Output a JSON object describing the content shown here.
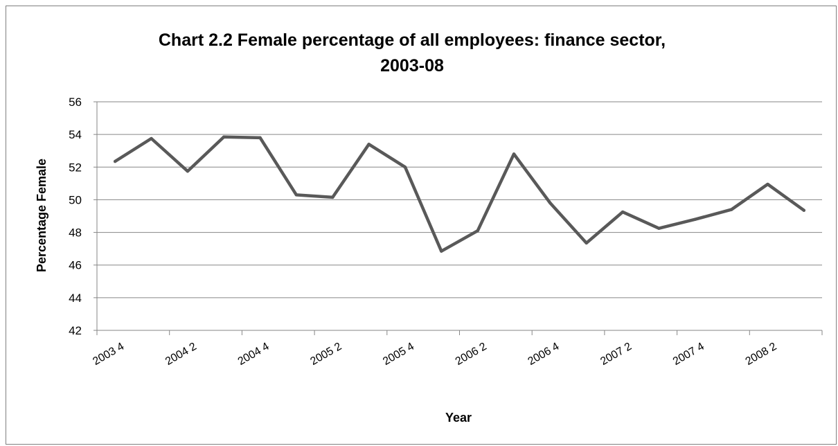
{
  "chart_data": {
    "type": "line",
    "title": "Chart 2.2 Female percentage of all employees: finance sector, 2003-08",
    "title_lines": [
      "Chart 2.2 Female percentage of all employees: finance sector,",
      "2003-08"
    ],
    "xlabel": "Year",
    "ylabel": "Percentage Female",
    "ylim": [
      42,
      56
    ],
    "yticks": [
      "42",
      "44",
      "46",
      "48",
      "50",
      "52",
      "54",
      "56"
    ],
    "grid": "horizontal",
    "legend": "none",
    "x": [
      "2003 4",
      "2004 1",
      "2004 2",
      "2004 3",
      "2004 4",
      "2005 1",
      "2005 2",
      "2005 3",
      "2005 4",
      "2006 1",
      "2006 2",
      "2006 3",
      "2006 4",
      "2007 1",
      "2007 2",
      "2007 3",
      "2007 4",
      "2008 1",
      "2008 2",
      "2008 3"
    ],
    "xtick_labels": [
      "2003 4",
      "2004 2",
      "2004 4",
      "2005 2",
      "2005 4",
      "2006 2",
      "2006 4",
      "2007 2",
      "2007 4",
      "2008 2"
    ],
    "series": [
      {
        "values": [
          52.35,
          53.75,
          51.75,
          53.85,
          53.8,
          50.3,
          50.15,
          53.4,
          52.0,
          46.85,
          48.1,
          52.8,
          49.8,
          47.35,
          49.25,
          48.25,
          48.8,
          49.4,
          50.95,
          49.35
        ],
        "color": "#595959"
      }
    ]
  }
}
